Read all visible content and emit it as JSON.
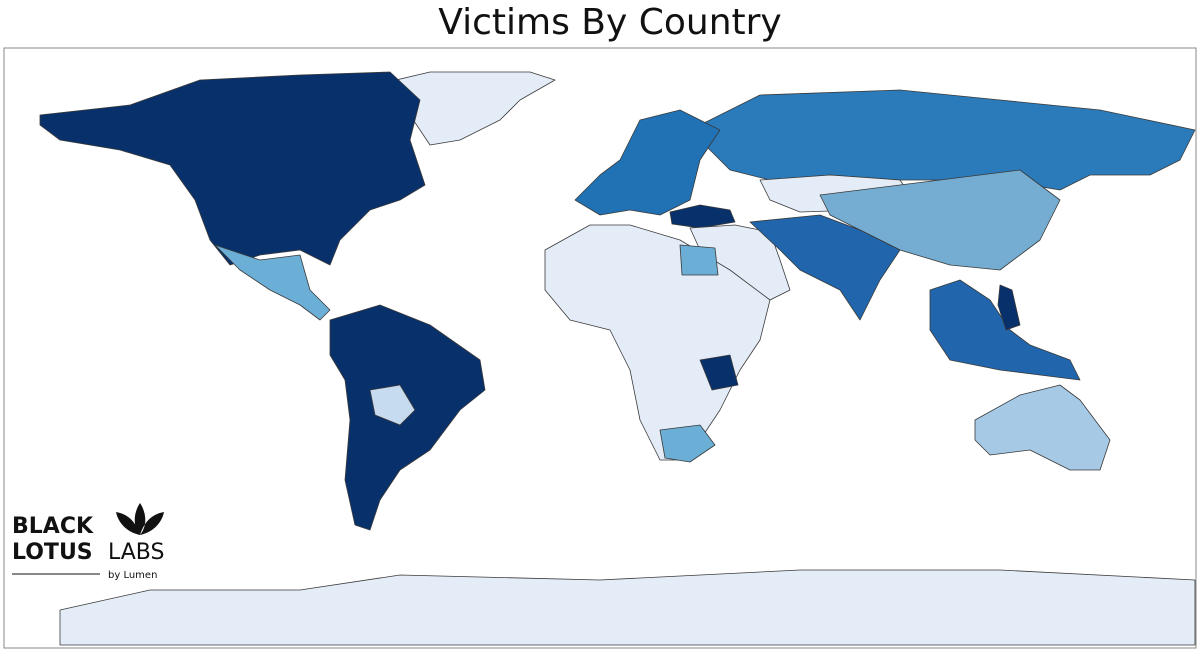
{
  "header": {
    "title": "Victims By Country"
  },
  "logo": {
    "line1": "BLACK",
    "line2": "LOTUS",
    "line2b": "LABS",
    "tagline": "by Lumen"
  }
}
